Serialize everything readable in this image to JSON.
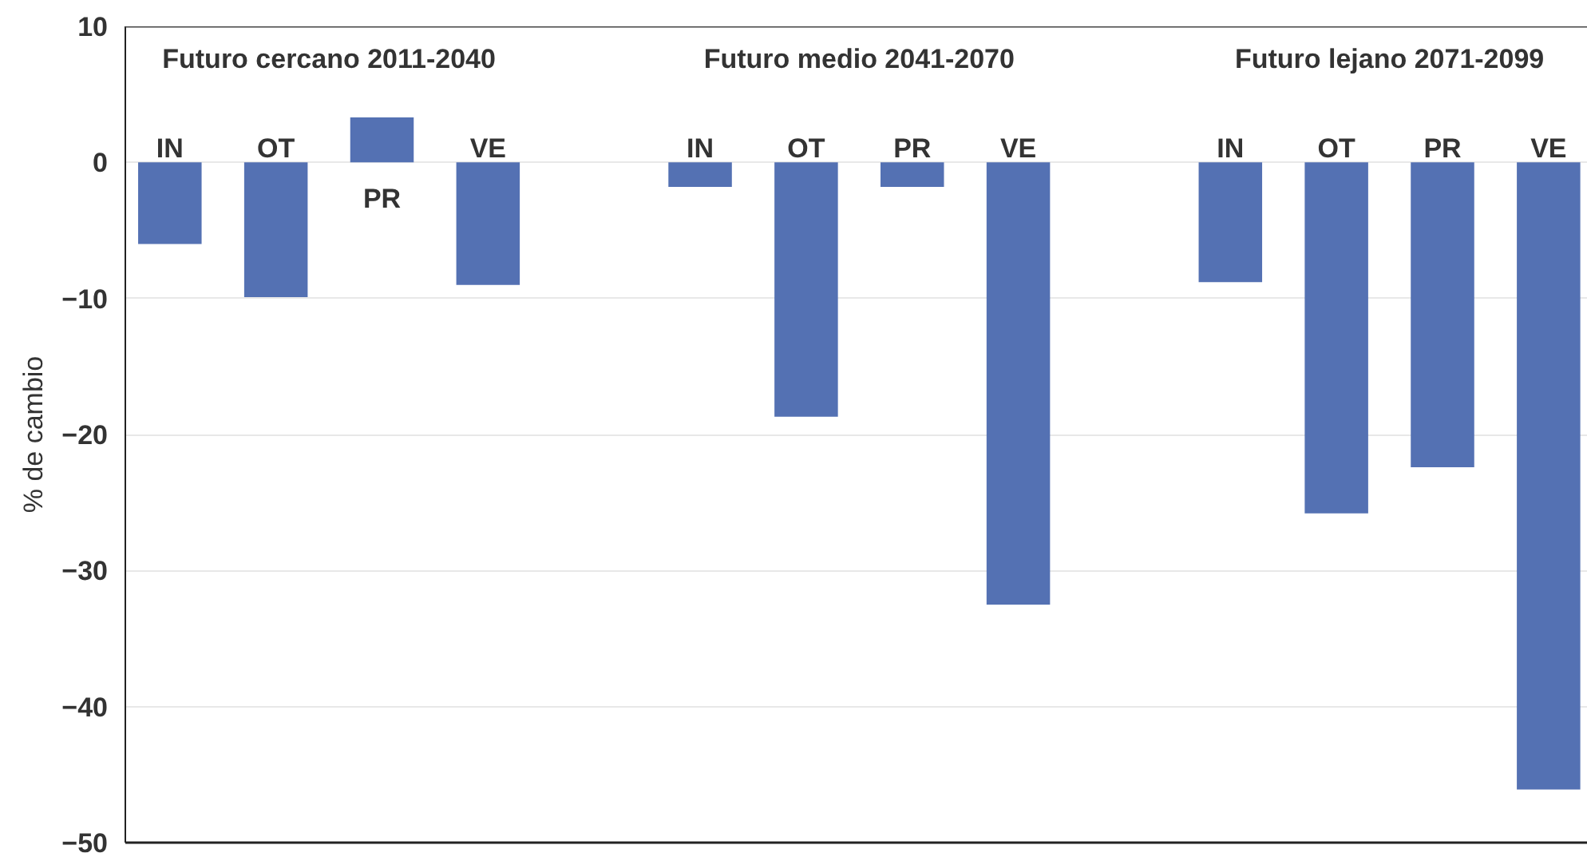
{
  "chart_data": {
    "type": "bar",
    "ylabel": "% de cambio",
    "categories": [
      "IN",
      "OT",
      "PR",
      "VE",
      "IN",
      "OT",
      "PR",
      "VE",
      "IN",
      "OT",
      "PR",
      "VE"
    ],
    "values": [
      -6.0,
      -9.9,
      3.3,
      -9.0,
      -1.8,
      -18.7,
      -1.8,
      -32.5,
      -8.8,
      -25.8,
      -22.4,
      -46.1
    ],
    "color": "#5471b3",
    "annotations": [
      "Futuro cercano 2011-2040",
      "Futuro medio 2041-2070",
      "Futuro lejano 2071-2099"
    ],
    "ylim": [
      -50,
      10
    ],
    "yticks": [
      -50,
      -40,
      -30,
      -20,
      -10,
      0,
      10
    ],
    "grid": "y",
    "tick_labels": "y"
  }
}
